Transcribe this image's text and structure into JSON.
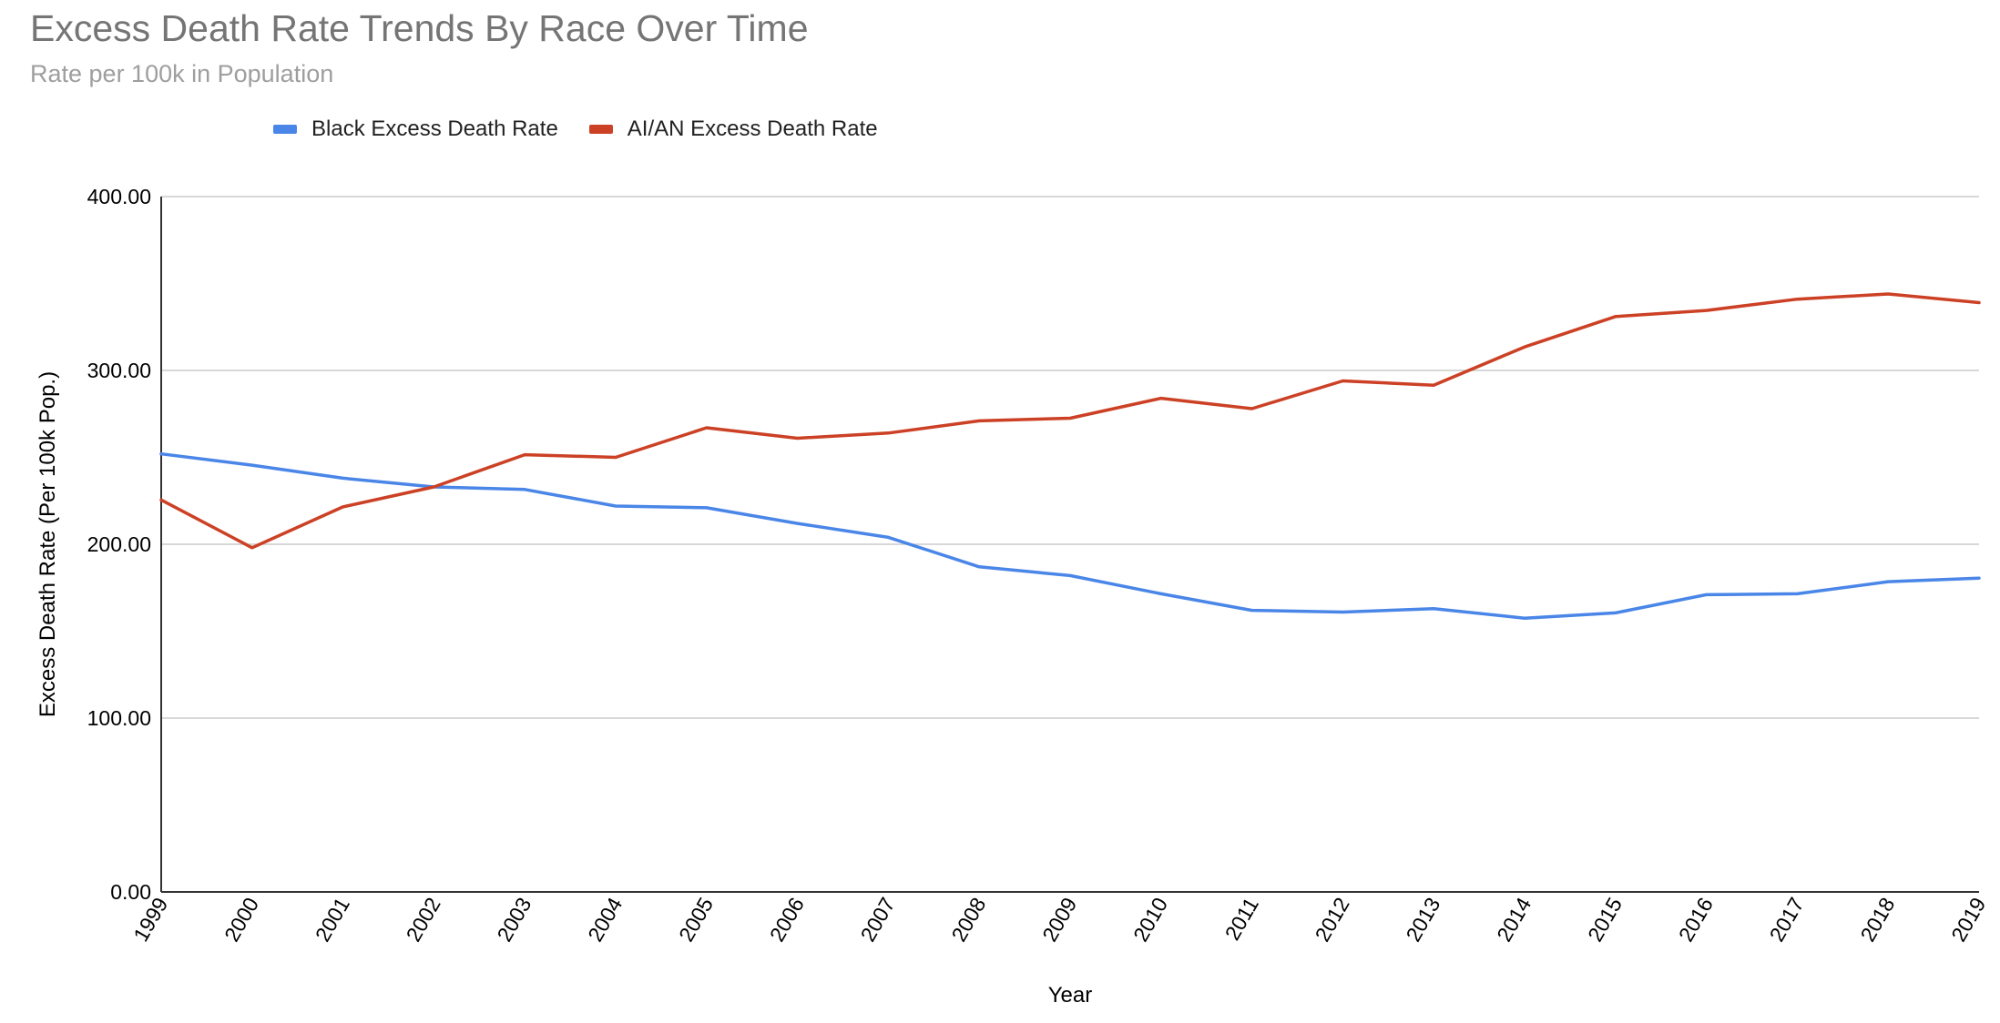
{
  "chart_data": {
    "type": "line",
    "title": "Excess Death Rate Trends By Race Over Time",
    "subtitle": "Rate per 100k in Population",
    "xlabel": "Year",
    "ylabel": "Excess Death Rate (Per 100k Pop.)",
    "ylim": [
      0,
      400
    ],
    "yticks": [
      "0.00",
      "100.00",
      "200.00",
      "300.00",
      "400.00"
    ],
    "ytick_values": [
      0,
      100,
      200,
      300,
      400
    ],
    "grid": true,
    "legend_position": "top",
    "x": [
      "1999",
      "2000",
      "2001",
      "2002",
      "2003",
      "2004",
      "2005",
      "2006",
      "2007",
      "2008",
      "2009",
      "2010",
      "2011",
      "2012",
      "2013",
      "2014",
      "2015",
      "2016",
      "2017",
      "2018",
      "2019"
    ],
    "series": [
      {
        "name": "Black Excess Death Rate",
        "color": "#4a86e8",
        "values": [
          252,
          245.5,
          238,
          233,
          231.5,
          222,
          221,
          212,
          204,
          187,
          182,
          171.5,
          162,
          161,
          163,
          157.5,
          160.5,
          171,
          171.5,
          178.5,
          180.5
        ]
      },
      {
        "name": "AI/AN Excess Death Rate",
        "color": "#cc4125",
        "values": [
          225.5,
          198,
          221.5,
          233,
          251.5,
          250,
          267,
          261,
          264,
          271,
          272.5,
          284,
          278,
          294,
          291.5,
          313.5,
          331,
          334.5,
          341,
          344,
          339
        ]
      }
    ]
  }
}
